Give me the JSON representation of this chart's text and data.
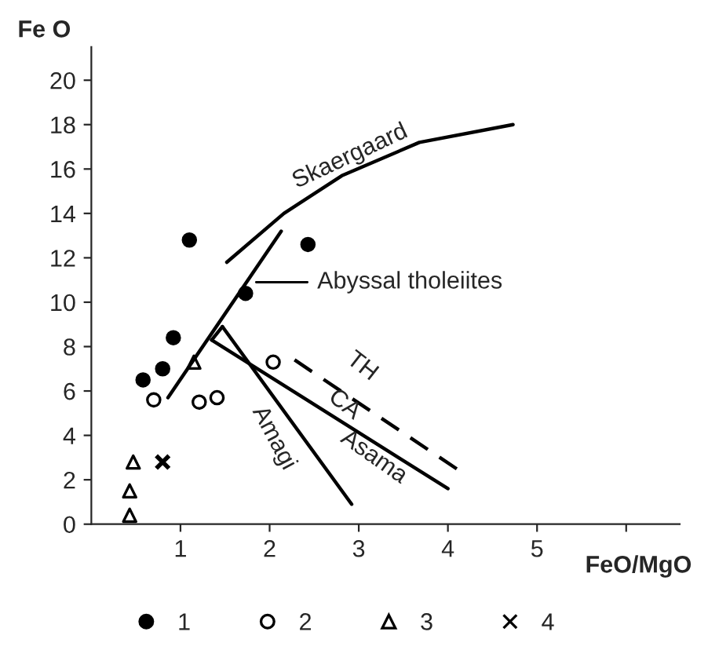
{
  "chart_data": {
    "type": "scatter",
    "xlabel": "FeO/MgO",
    "ylabel": "Fe O",
    "xlim": [
      0,
      6.6
    ],
    "ylim": [
      0,
      21.5
    ],
    "xticks": [
      1,
      2,
      3,
      4,
      5,
      {
        "value": 6,
        "label": null
      }
    ],
    "yticks": [
      0,
      2,
      4,
      6,
      8,
      10,
      12,
      14,
      16,
      18,
      20
    ],
    "grid": false,
    "legend": "bottom",
    "series": [
      {
        "name": "1",
        "marker": "circle",
        "color": "#000000",
        "x": [
          1.1,
          2.43,
          1.73,
          0.92,
          0.8,
          0.58
        ],
        "values": [
          12.8,
          12.6,
          10.4,
          8.4,
          7.0,
          6.5
        ]
      },
      {
        "name": "2",
        "marker": "circle",
        "color": "#ffffff",
        "x": [
          0.7,
          1.21,
          1.41,
          2.04
        ],
        "values": [
          5.6,
          5.5,
          5.7,
          7.3
        ]
      },
      {
        "name": "3",
        "marker": "triangle",
        "color": "#ffffff",
        "x": [
          1.15,
          0.47,
          0.43,
          0.43
        ],
        "values": [
          7.3,
          2.8,
          1.5,
          0.4
        ]
      },
      {
        "name": "4",
        "marker": "cross",
        "color": "#000000",
        "x": [
          0.8
        ],
        "values": [
          2.8
        ]
      },
      {
        "type": "line",
        "line_style": "solid",
        "color": "#000000",
        "x": [
          1.52,
          2.16,
          2.81,
          3.68,
          4.73
        ],
        "values": [
          11.8,
          14.0,
          15.7,
          17.2,
          18.0
        ]
      },
      {
        "type": "line",
        "line_style": "solid",
        "color": "#000000",
        "x": [
          0.86,
          2.13
        ],
        "values": [
          5.7,
          13.2
        ]
      },
      {
        "type": "line",
        "line_style": "solid",
        "color": "#000000",
        "x": [
          1.47,
          2.92
        ],
        "values": [
          8.9,
          0.9
        ]
      },
      {
        "type": "line",
        "line_style": "solid",
        "color": "#000000",
        "x": [
          1.35,
          4.0
        ],
        "values": [
          8.3,
          1.6
        ]
      },
      {
        "type": "line",
        "line_style": "solid",
        "color": "#000000",
        "x": [
          1.35,
          1.47
        ],
        "values": [
          8.3,
          8.9
        ]
      },
      {
        "type": "line",
        "line_style": "dashed",
        "color": "#000000",
        "x": [
          2.28,
          4.17
        ],
        "values": [
          7.4,
          2.3
        ]
      }
    ],
    "annotations": [
      "Skaergaard",
      {
        "text": "Abyssal tholeiites",
        "x": 1.8,
        "y": 10.9
      },
      "TH",
      "CA",
      "Asama",
      "Amagi"
    ]
  }
}
